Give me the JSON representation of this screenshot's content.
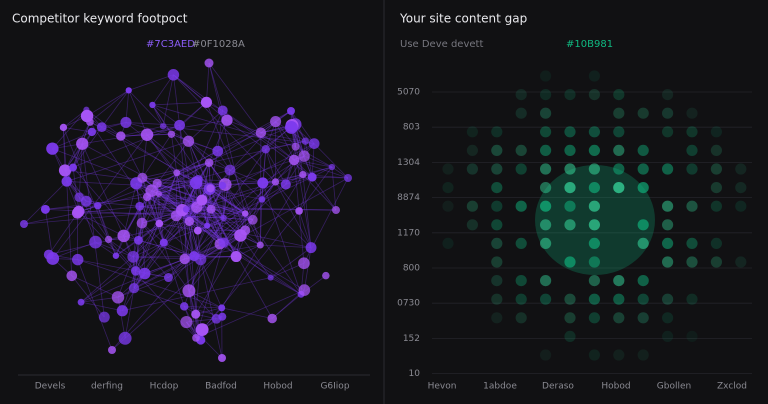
{
  "left_panel": {
    "title": "Competitor keyword footpoct",
    "legend": [
      "#7C3AED",
      "#0F1028A"
    ],
    "x_labels": [
      "Devels",
      "derfing",
      "Hcdop",
      "Badfod",
      "Hobod",
      "G6Iiop"
    ]
  },
  "right_panel": {
    "title": "Your site content gap",
    "subtitle": "Use Deve devett",
    "legend": "#10B981",
    "y_labels": [
      "5070",
      "803",
      "1304",
      "8874",
      "1170",
      "800",
      "0730",
      "152",
      "10"
    ],
    "x_labels": [
      "Hevon",
      "1abdoe",
      "Deraso",
      "Hobod",
      "Gbollen",
      "Zxclod"
    ]
  }
}
